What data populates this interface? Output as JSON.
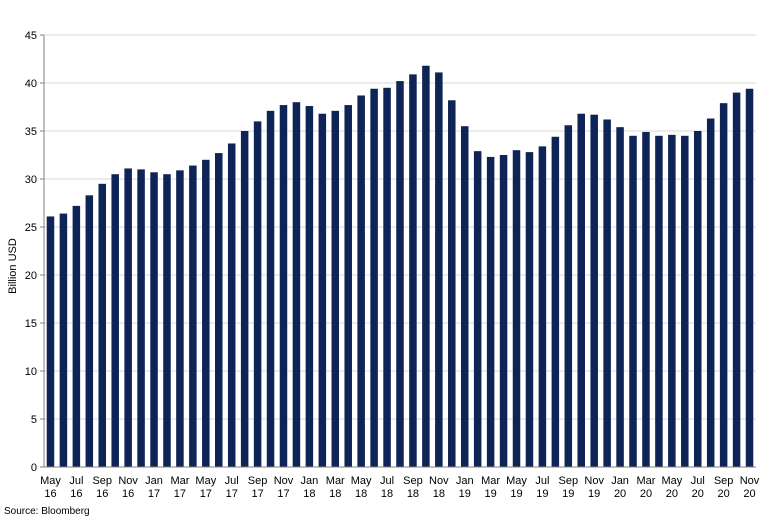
{
  "chart_data": {
    "type": "bar",
    "ylabel": "Billion USD",
    "ylim": [
      0,
      45
    ],
    "yticks": [
      0,
      5,
      10,
      15,
      20,
      25,
      30,
      35,
      40,
      45
    ],
    "grid": true,
    "legend": "none",
    "colors": {
      "bar": "#0e2356",
      "grid": "#d9d9d9",
      "axis": "#808080"
    },
    "categories": [
      "May 16",
      "Jun 16",
      "Jul 16",
      "Aug 16",
      "Sep 16",
      "Oct 16",
      "Nov 16",
      "Dec 16",
      "Jan 17",
      "Feb 17",
      "Mar 17",
      "Apr 17",
      "May 17",
      "Jun 17",
      "Jul 17",
      "Aug 17",
      "Sep 17",
      "Oct 17",
      "Nov 17",
      "Dec 17",
      "Jan 18",
      "Feb 18",
      "Mar 18",
      "Apr 18",
      "May 18",
      "Jun 18",
      "Jul 18",
      "Aug 18",
      "Sep 18",
      "Oct 18",
      "Nov 18",
      "Dec 18",
      "Jan 19",
      "Feb 19",
      "Mar 19",
      "Apr 19",
      "May 19",
      "Jun 19",
      "Jul 19",
      "Aug 19",
      "Sep 19",
      "Oct 19",
      "Nov 19",
      "Dec 19",
      "Jan 20",
      "Feb 20",
      "Mar 20",
      "Apr 20",
      "May 20",
      "Jun 20",
      "Jul 20",
      "Aug 20",
      "Sep 20",
      "Oct 20",
      "Nov 20"
    ],
    "values": [
      26.1,
      26.4,
      27.2,
      28.3,
      29.5,
      30.5,
      31.1,
      31.0,
      30.7,
      30.5,
      30.9,
      31.4,
      32.0,
      32.7,
      33.7,
      35.0,
      36.0,
      37.1,
      37.7,
      38.0,
      37.6,
      36.8,
      37.1,
      37.7,
      38.7,
      39.4,
      39.5,
      40.2,
      40.9,
      41.8,
      41.1,
      38.2,
      35.5,
      32.9,
      32.3,
      32.5,
      33.0,
      32.8,
      33.4,
      34.4,
      35.6,
      36.8,
      36.7,
      36.2,
      35.4,
      34.5,
      34.9,
      34.5,
      34.6,
      34.5,
      35.0,
      36.3,
      37.9,
      39.0,
      39.4
    ],
    "xtick_labels": [
      {
        "index": 0,
        "month": "May",
        "year": "16"
      },
      {
        "index": 2,
        "month": "Jul",
        "year": "16"
      },
      {
        "index": 4,
        "month": "Sep",
        "year": "16"
      },
      {
        "index": 6,
        "month": "Nov",
        "year": "16"
      },
      {
        "index": 8,
        "month": "Jan",
        "year": "17"
      },
      {
        "index": 10,
        "month": "Mar",
        "year": "17"
      },
      {
        "index": 12,
        "month": "May",
        "year": "17"
      },
      {
        "index": 14,
        "month": "Jul",
        "year": "17"
      },
      {
        "index": 16,
        "month": "Sep",
        "year": "17"
      },
      {
        "index": 18,
        "month": "Nov",
        "year": "17"
      },
      {
        "index": 20,
        "month": "Jan",
        "year": "18"
      },
      {
        "index": 22,
        "month": "Mar",
        "year": "18"
      },
      {
        "index": 24,
        "month": "May",
        "year": "18"
      },
      {
        "index": 26,
        "month": "Jul",
        "year": "18"
      },
      {
        "index": 28,
        "month": "Sep",
        "year": "18"
      },
      {
        "index": 30,
        "month": "Nov",
        "year": "18"
      },
      {
        "index": 32,
        "month": "Jan",
        "year": "19"
      },
      {
        "index": 34,
        "month": "Mar",
        "year": "19"
      },
      {
        "index": 36,
        "month": "May",
        "year": "19"
      },
      {
        "index": 38,
        "month": "Jul",
        "year": "19"
      },
      {
        "index": 40,
        "month": "Sep",
        "year": "19"
      },
      {
        "index": 42,
        "month": "Nov",
        "year": "19"
      },
      {
        "index": 44,
        "month": "Jan",
        "year": "20"
      },
      {
        "index": 46,
        "month": "Mar",
        "year": "20"
      },
      {
        "index": 48,
        "month": "May",
        "year": "20"
      },
      {
        "index": 50,
        "month": "Jul",
        "year": "20"
      },
      {
        "index": 52,
        "month": "Sep",
        "year": "20"
      },
      {
        "index": 54,
        "month": "Nov",
        "year": "20"
      }
    ]
  },
  "source": "Source: Bloomberg"
}
